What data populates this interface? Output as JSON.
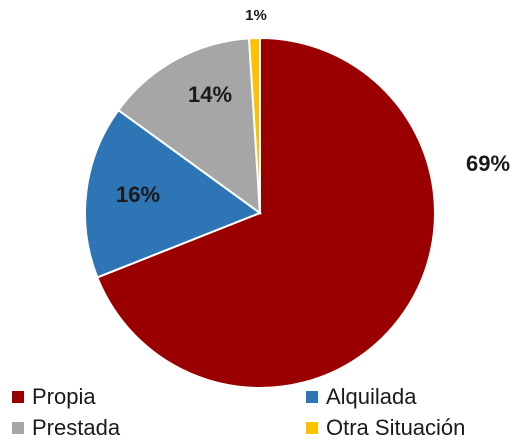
{
  "chart_data": {
    "type": "pie",
    "categories": [
      "Propia",
      "Alquilada",
      "Prestada",
      "Otra Situación"
    ],
    "values": [
      69,
      16,
      14,
      1
    ],
    "value_labels": [
      "69%",
      "16%",
      "14%",
      "1%"
    ],
    "colors": [
      "#9b0000",
      "#2e75b6",
      "#a6a6a6",
      "#ffc000"
    ],
    "legend": "bottom"
  }
}
